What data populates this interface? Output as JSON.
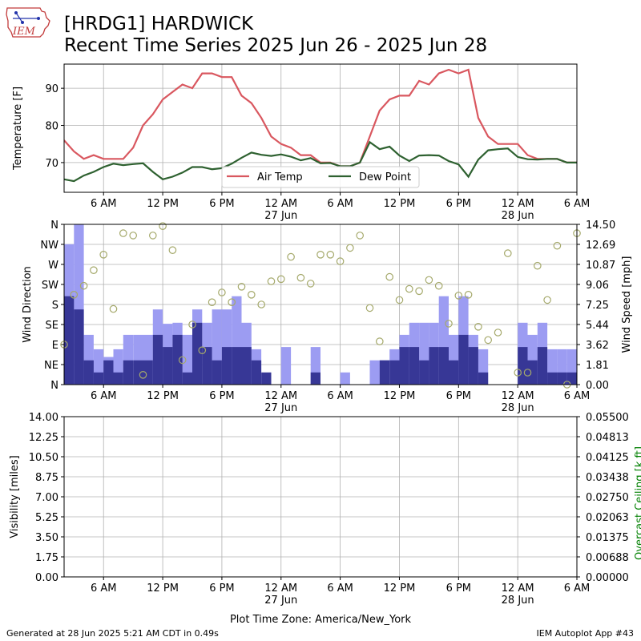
{
  "header": {
    "logo_text": "IEM",
    "title_line1": "[HRDG1] HARDWICK",
    "title_line2": "Recent Time Series 2025 Jun 26 - 2025 Jun 28"
  },
  "footer": {
    "generated": "Generated at 28 Jun 2025 5:21 AM CDT in 0.49s",
    "app": "IEM Autoplot App #43"
  },
  "colors": {
    "air_temp": "#d9575f",
    "dew_point": "#2e6130",
    "gust": "#9c9cf2",
    "speed": "#373796",
    "direction": "#a5a96b",
    "ceiling_axis": "#008000",
    "grid": "#b0b0b0"
  },
  "chart_data": [
    {
      "type": "line",
      "name": "temperature",
      "ylabel": "Temperature [F]",
      "ylim": [
        62,
        96.5
      ],
      "yticks": [
        70,
        80,
        90
      ],
      "xlim_hours": [
        2,
        54
      ],
      "xticks": [
        {
          "h": 6,
          "label": "6 AM"
        },
        {
          "h": 12,
          "label": "12 PM"
        },
        {
          "h": 18,
          "label": "6 PM"
        },
        {
          "h": 24,
          "label": "12 AM",
          "sub": "27 Jun"
        },
        {
          "h": 30,
          "label": "6 AM"
        },
        {
          "h": 36,
          "label": "12 PM"
        },
        {
          "h": 42,
          "label": "6 PM"
        },
        {
          "h": 48,
          "label": "12 AM",
          "sub": "28 Jun"
        },
        {
          "h": 54,
          "label": "6 AM"
        }
      ],
      "grid": true,
      "legend_position": "bottom-center",
      "series": [
        {
          "name": "Air Temp",
          "x": [
            2,
            3,
            4,
            5,
            6,
            7,
            8,
            9,
            10,
            11,
            12,
            13,
            14,
            15,
            16,
            17,
            18,
            19,
            20,
            21,
            22,
            23,
            24,
            25,
            26,
            27,
            28,
            29,
            30,
            31,
            32,
            33,
            34,
            35,
            36,
            37,
            38,
            39,
            40,
            41,
            42,
            43,
            44,
            45,
            46,
            47,
            48,
            49,
            50,
            51,
            52,
            53,
            54
          ],
          "y": [
            76,
            73,
            71,
            72,
            71,
            71,
            71,
            74,
            80,
            83,
            87,
            89,
            91,
            90,
            94,
            94,
            93,
            93,
            88,
            86,
            82,
            77,
            75,
            74,
            72,
            72,
            70,
            70,
            69,
            69,
            70,
            77,
            84,
            87,
            88,
            88,
            92,
            91,
            94,
            95,
            94,
            95,
            82,
            77,
            75,
            75,
            75,
            72,
            71,
            71,
            71,
            70,
            70
          ]
        },
        {
          "name": "Dew Point",
          "x": [
            2,
            3,
            4,
            5,
            6,
            7,
            8,
            9,
            10,
            11,
            12,
            13,
            14,
            15,
            16,
            17,
            18,
            19,
            20,
            21,
            22,
            23,
            24,
            25,
            26,
            27,
            28,
            29,
            30,
            31,
            32,
            33,
            34,
            35,
            36,
            37,
            38,
            39,
            40,
            41,
            42,
            43,
            44,
            45,
            46,
            47,
            48,
            49,
            50,
            51,
            52,
            53,
            54
          ],
          "y": [
            65.5,
            65,
            66.5,
            67.5,
            68.8,
            69.7,
            69.3,
            69.6,
            69.8,
            67.5,
            65.5,
            66.2,
            67.3,
            68.8,
            68.8,
            68.2,
            68.5,
            69.7,
            71.3,
            72.7,
            72.1,
            71.8,
            72.2,
            71.6,
            70.6,
            71.2,
            69.8,
            69.9,
            69,
            69,
            70,
            75.5,
            73.6,
            74.3,
            71.9,
            70.4,
            71.9,
            72,
            71.9,
            70.4,
            69.5,
            66.2,
            70.8,
            73.3,
            73.6,
            73.8,
            71.5,
            70.9,
            70.8,
            71,
            71,
            70,
            70
          ]
        }
      ]
    },
    {
      "type": "bar",
      "name": "wind",
      "ylabel_left": "Wind Direction",
      "ylabel_right": "Wind Speed [mph]",
      "direction_ticks": [
        {
          "deg": 0,
          "label": "N"
        },
        {
          "deg": 45,
          "label": "NE"
        },
        {
          "deg": 90,
          "label": "E"
        },
        {
          "deg": 135,
          "label": "SE"
        },
        {
          "deg": 180,
          "label": "S"
        },
        {
          "deg": 225,
          "label": "SW"
        },
        {
          "deg": 270,
          "label": "W"
        },
        {
          "deg": 315,
          "label": "NW"
        },
        {
          "deg": 360,
          "label": "N"
        }
      ],
      "speed_ylim": [
        0,
        14.5
      ],
      "speed_ticks": [
        "0.00",
        "1.81",
        "3.62",
        "5.44",
        "7.25",
        "9.06",
        "10.87",
        "12.69",
        "14.50"
      ],
      "bar_start_hour": 2.5,
      "bar_width_hours": 1,
      "gust": [
        12.7,
        14.5,
        4.5,
        3.2,
        2.5,
        3.2,
        4.5,
        4.5,
        4.5,
        6.8,
        5.5,
        5.6,
        4.5,
        6.8,
        5.6,
        6.8,
        6.8,
        8,
        5.6,
        3.2,
        1,
        0,
        3.4,
        0,
        0,
        3.4,
        0,
        0,
        1.1,
        0,
        0,
        2.2,
        2.2,
        3.2,
        4.5,
        5.6,
        5.6,
        5.6,
        8,
        4.5,
        8,
        4.5,
        3.2,
        0,
        0,
        0,
        5.6,
        4.5,
        5.6,
        3.2,
        3.2,
        3.2
      ],
      "sustained": [
        8,
        6.8,
        2.2,
        1.1,
        2.2,
        1.1,
        2.2,
        2.2,
        2.2,
        4.5,
        3.4,
        4.5,
        1.1,
        5.6,
        3.4,
        2.2,
        3.4,
        3.4,
        3.4,
        2.2,
        1.1,
        0,
        0,
        0,
        0,
        1.1,
        0,
        0,
        0,
        0,
        0,
        0,
        2.2,
        2.2,
        3.4,
        3.4,
        2.2,
        3.4,
        3.4,
        2.2,
        4.5,
        3.4,
        1.1,
        0,
        0,
        0,
        3.4,
        2.2,
        3.4,
        1.1,
        1.1,
        1.1
      ],
      "direction_points": [
        {
          "h": 2,
          "deg": 90
        },
        {
          "h": 3,
          "deg": 202
        },
        {
          "h": 4,
          "deg": 222
        },
        {
          "h": 5,
          "deg": 257
        },
        {
          "h": 6,
          "deg": 292
        },
        {
          "h": 7,
          "deg": 170
        },
        {
          "h": 8,
          "deg": 340
        },
        {
          "h": 9,
          "deg": 335
        },
        {
          "h": 10,
          "deg": 22
        },
        {
          "h": 11,
          "deg": 335
        },
        {
          "h": 12,
          "deg": 356
        },
        {
          "h": 13,
          "deg": 302
        },
        {
          "h": 14,
          "deg": 55
        },
        {
          "h": 15,
          "deg": 135
        },
        {
          "h": 16,
          "deg": 77
        },
        {
          "h": 17,
          "deg": 185
        },
        {
          "h": 18,
          "deg": 207
        },
        {
          "h": 19,
          "deg": 185
        },
        {
          "h": 20,
          "deg": 220
        },
        {
          "h": 21,
          "deg": 202
        },
        {
          "h": 22,
          "deg": 180
        },
        {
          "h": 23,
          "deg": 232
        },
        {
          "h": 24,
          "deg": 237
        },
        {
          "h": 25,
          "deg": 287
        },
        {
          "h": 26,
          "deg": 240
        },
        {
          "h": 27,
          "deg": 227
        },
        {
          "h": 28,
          "deg": 292
        },
        {
          "h": 29,
          "deg": 292
        },
        {
          "h": 30,
          "deg": 277
        },
        {
          "h": 31,
          "deg": 307
        },
        {
          "h": 32,
          "deg": 335
        },
        {
          "h": 33,
          "deg": 172
        },
        {
          "h": 34,
          "deg": 97
        },
        {
          "h": 35,
          "deg": 242
        },
        {
          "h": 36,
          "deg": 190
        },
        {
          "h": 37,
          "deg": 215
        },
        {
          "h": 38,
          "deg": 210
        },
        {
          "h": 39,
          "deg": 235
        },
        {
          "h": 40,
          "deg": 222
        },
        {
          "h": 41,
          "deg": 137
        },
        {
          "h": 42,
          "deg": 200
        },
        {
          "h": 43,
          "deg": 202
        },
        {
          "h": 44,
          "deg": 130
        },
        {
          "h": 45,
          "deg": 100
        },
        {
          "h": 46,
          "deg": 117
        },
        {
          "h": 47,
          "deg": 295
        },
        {
          "h": 48,
          "deg": 27
        },
        {
          "h": 49,
          "deg": 27
        },
        {
          "h": 50,
          "deg": 267
        },
        {
          "h": 51,
          "deg": 190
        },
        {
          "h": 52,
          "deg": 312
        },
        {
          "h": 53,
          "deg": 0
        },
        {
          "h": 54,
          "deg": 340
        },
        {
          "h": 55,
          "deg": 257
        }
      ]
    },
    {
      "type": "line",
      "name": "visibility",
      "ylabel_left": "Visibility [miles]",
      "ylabel_right": "Overcast Ceiling [k ft]",
      "ylim_left": [
        0,
        14
      ],
      "left_ticks": [
        "0.00",
        "1.75",
        "3.50",
        "5.25",
        "7.00",
        "8.75",
        "10.50",
        "12.25",
        "14.00"
      ],
      "ylim_right": [
        0,
        0.055
      ],
      "right_ticks": [
        "0.00000",
        "0.00688",
        "0.01375",
        "0.02063",
        "0.02750",
        "0.03438",
        "0.04125",
        "0.04813",
        "0.05500"
      ],
      "series": [],
      "xlabel": "Plot Time Zone: America/New_York"
    }
  ]
}
